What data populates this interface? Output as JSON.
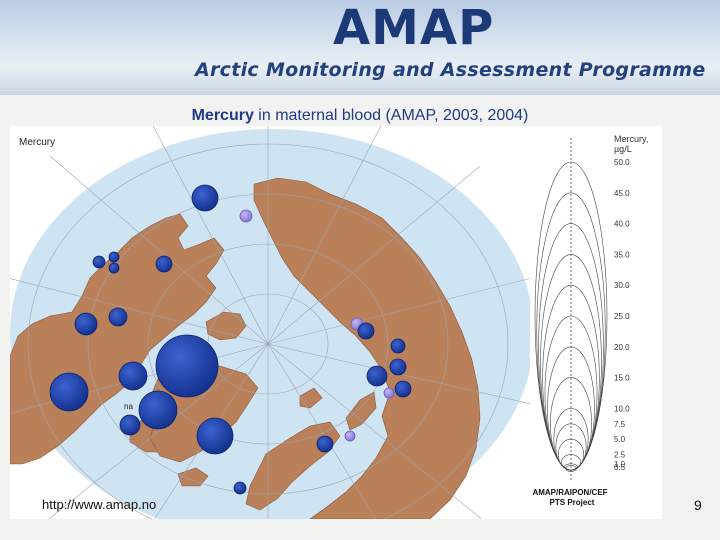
{
  "banner": {
    "logo": "AMAP",
    "subtitle": "Arctic Monitoring and Assessment Programme"
  },
  "slide": {
    "title_bold": "Mercury",
    "title_rest": " in maternal blood (AMAP, 2003, 2004)",
    "url": "http://www.amap.no",
    "page_number": "9"
  },
  "map": {
    "label": "Mercury",
    "site_label": "na"
  },
  "legend": {
    "title": "Mercury,",
    "unit": "µg/L",
    "ticks": [
      "50.0",
      "45.0",
      "40.0",
      "35.0",
      "30.0",
      "25.0",
      "20.0",
      "15.0",
      "10.0",
      "7.5",
      "5.0",
      "2.5",
      "1.0",
      "0.5"
    ],
    "credit_line1": "AMAP/RAIPON/CEF",
    "credit_line2": "PTS Project"
  },
  "colors": {
    "ocean": "#cfe4f3",
    "land": "#b98059",
    "grid": "#9aa6b0",
    "marker_dark": "#14369a",
    "marker_light": "#8a7ddc",
    "title_blue": "#1f3a8a"
  }
}
